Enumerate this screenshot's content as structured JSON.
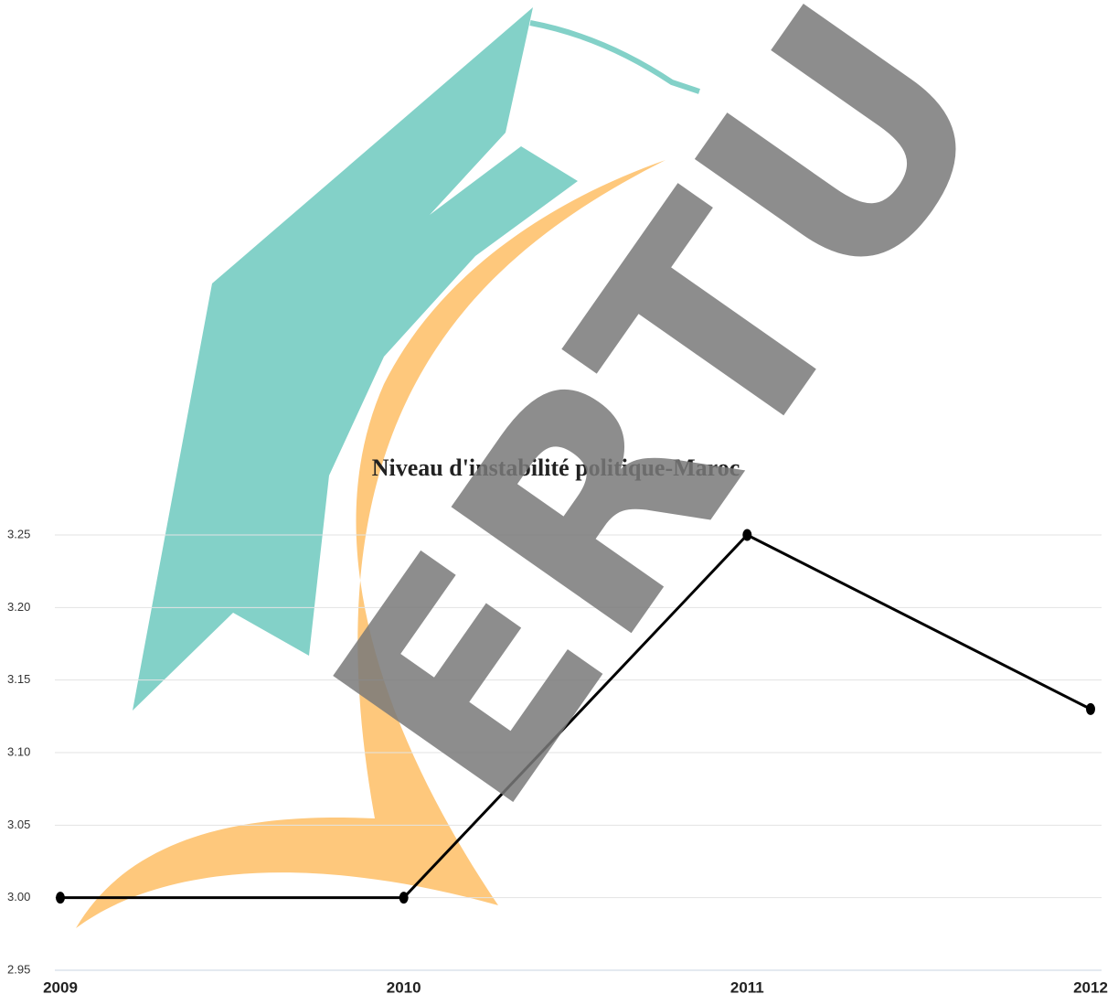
{
  "chart_data": {
    "type": "line",
    "title": "Niveau d'instabilité politique-Maroc",
    "watermark": "ERTU PRE",
    "categories": [
      "2009",
      "2010",
      "2011",
      "2012"
    ],
    "series": [
      {
        "name": "Niveau d'instabilité politique",
        "color": "#000000",
        "values": [
          3.0,
          3.0,
          3.25,
          3.13
        ]
      }
    ],
    "ylim": [
      2.95,
      3.25
    ],
    "yticks": [
      2.95,
      {
        "value": 3.0,
        "label": "3.00"
      },
      3.05,
      {
        "value": 3.1,
        "label": "3.10"
      },
      3.15,
      {
        "value": 3.2,
        "label": "3.20"
      },
      3.25
    ],
    "grid": true
  }
}
